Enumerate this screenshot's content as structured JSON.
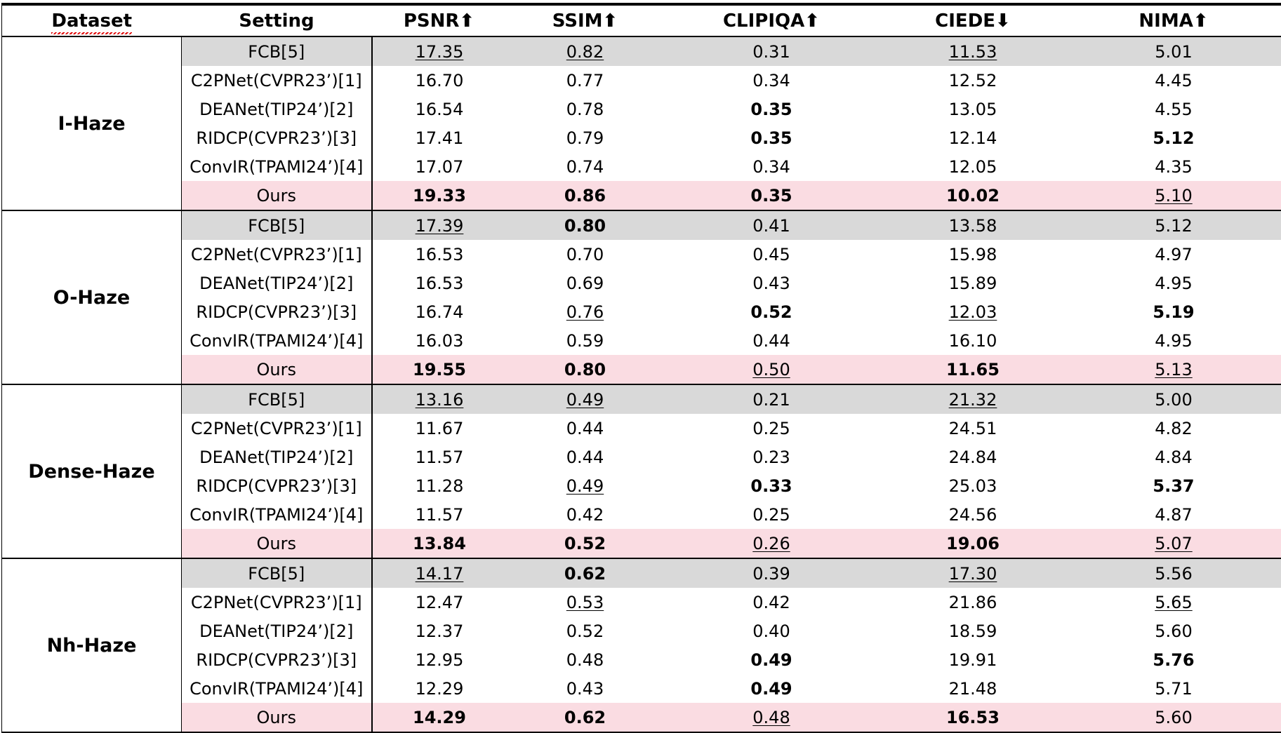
{
  "table": {
    "columns": [
      "Dataset",
      "Setting",
      "PSNR⬆",
      "SSIM⬆",
      "CLIPIQA⬆",
      "CIEDE⬇",
      "NIMA⬆"
    ],
    "groups": [
      {
        "dataset": "I-Haze",
        "rows": [
          {
            "setting": "FCB[5]",
            "kind": "baseline",
            "cells": [
              {
                "v": "17.35",
                "s": "u"
              },
              {
                "v": "0.82",
                "s": "u"
              },
              {
                "v": "0.31",
                "s": ""
              },
              {
                "v": "11.53",
                "s": "u"
              },
              {
                "v": "5.01",
                "s": ""
              }
            ]
          },
          {
            "setting": "C2PNet(CVPR23’)[1]",
            "kind": "",
            "cells": [
              {
                "v": "16.70",
                "s": ""
              },
              {
                "v": "0.77",
                "s": ""
              },
              {
                "v": "0.34",
                "s": ""
              },
              {
                "v": "12.52",
                "s": ""
              },
              {
                "v": "4.45",
                "s": ""
              }
            ]
          },
          {
            "setting": "DEANet(TIP24’)[2]",
            "kind": "",
            "cells": [
              {
                "v": "16.54",
                "s": ""
              },
              {
                "v": "0.78",
                "s": ""
              },
              {
                "v": "0.35",
                "s": "b"
              },
              {
                "v": "13.05",
                "s": ""
              },
              {
                "v": "4.55",
                "s": ""
              }
            ]
          },
          {
            "setting": "RIDCP(CVPR23’)[3]",
            "kind": "",
            "cells": [
              {
                "v": "17.41",
                "s": ""
              },
              {
                "v": "0.79",
                "s": ""
              },
              {
                "v": "0.35",
                "s": "b"
              },
              {
                "v": "12.14",
                "s": ""
              },
              {
                "v": "5.12",
                "s": "b"
              }
            ]
          },
          {
            "setting": "ConvIR(TPAMI24’)[4]",
            "kind": "",
            "cells": [
              {
                "v": "17.07",
                "s": ""
              },
              {
                "v": "0.74",
                "s": ""
              },
              {
                "v": "0.34",
                "s": ""
              },
              {
                "v": "12.05",
                "s": ""
              },
              {
                "v": "4.35",
                "s": ""
              }
            ]
          },
          {
            "setting": "Ours",
            "kind": "ours",
            "cells": [
              {
                "v": "19.33",
                "s": "b"
              },
              {
                "v": "0.86",
                "s": "b"
              },
              {
                "v": "0.35",
                "s": "b"
              },
              {
                "v": "10.02",
                "s": "b"
              },
              {
                "v": "5.10",
                "s": "u"
              }
            ]
          }
        ]
      },
      {
        "dataset": "O-Haze",
        "rows": [
          {
            "setting": "FCB[5]",
            "kind": "baseline",
            "cells": [
              {
                "v": "17.39",
                "s": "u"
              },
              {
                "v": "0.80",
                "s": "b"
              },
              {
                "v": "0.41",
                "s": ""
              },
              {
                "v": "13.58",
                "s": ""
              },
              {
                "v": "5.12",
                "s": ""
              }
            ]
          },
          {
            "setting": "C2PNet(CVPR23’)[1]",
            "kind": "",
            "cells": [
              {
                "v": "16.53",
                "s": ""
              },
              {
                "v": "0.70",
                "s": ""
              },
              {
                "v": "0.45",
                "s": ""
              },
              {
                "v": "15.98",
                "s": ""
              },
              {
                "v": "4.97",
                "s": ""
              }
            ]
          },
          {
            "setting": "DEANet(TIP24’)[2]",
            "kind": "",
            "cells": [
              {
                "v": "16.53",
                "s": ""
              },
              {
                "v": "0.69",
                "s": ""
              },
              {
                "v": "0.43",
                "s": ""
              },
              {
                "v": "15.89",
                "s": ""
              },
              {
                "v": "4.95",
                "s": ""
              }
            ]
          },
          {
            "setting": "RIDCP(CVPR23’)[3]",
            "kind": "",
            "cells": [
              {
                "v": "16.74",
                "s": ""
              },
              {
                "v": "0.76",
                "s": "u"
              },
              {
                "v": "0.52",
                "s": "b"
              },
              {
                "v": "12.03",
                "s": "u"
              },
              {
                "v": "5.19",
                "s": "b"
              }
            ]
          },
          {
            "setting": "ConvIR(TPAMI24’)[4]",
            "kind": "",
            "cells": [
              {
                "v": "16.03",
                "s": ""
              },
              {
                "v": "0.59",
                "s": ""
              },
              {
                "v": "0.44",
                "s": ""
              },
              {
                "v": "16.10",
                "s": ""
              },
              {
                "v": "4.95",
                "s": ""
              }
            ]
          },
          {
            "setting": "Ours",
            "kind": "ours",
            "cells": [
              {
                "v": "19.55",
                "s": "b"
              },
              {
                "v": "0.80",
                "s": "b"
              },
              {
                "v": "0.50",
                "s": "u"
              },
              {
                "v": "11.65",
                "s": "b"
              },
              {
                "v": "5.13",
                "s": "u"
              }
            ]
          }
        ]
      },
      {
        "dataset": "Dense-Haze",
        "rows": [
          {
            "setting": "FCB[5]",
            "kind": "baseline",
            "cells": [
              {
                "v": "13.16",
                "s": "u"
              },
              {
                "v": "0.49",
                "s": "u"
              },
              {
                "v": "0.21",
                "s": ""
              },
              {
                "v": "21.32",
                "s": "u"
              },
              {
                "v": "5.00",
                "s": ""
              }
            ]
          },
          {
            "setting": "C2PNet(CVPR23’)[1]",
            "kind": "",
            "cells": [
              {
                "v": "11.67",
                "s": ""
              },
              {
                "v": "0.44",
                "s": ""
              },
              {
                "v": "0.25",
                "s": ""
              },
              {
                "v": "24.51",
                "s": ""
              },
              {
                "v": "4.82",
                "s": ""
              }
            ]
          },
          {
            "setting": "DEANet(TIP24’)[2]",
            "kind": "",
            "cells": [
              {
                "v": "11.57",
                "s": ""
              },
              {
                "v": "0.44",
                "s": ""
              },
              {
                "v": "0.23",
                "s": ""
              },
              {
                "v": "24.84",
                "s": ""
              },
              {
                "v": "4.84",
                "s": ""
              }
            ]
          },
          {
            "setting": "RIDCP(CVPR23’)[3]",
            "kind": "",
            "cells": [
              {
                "v": "11.28",
                "s": ""
              },
              {
                "v": "0.49",
                "s": "u"
              },
              {
                "v": "0.33",
                "s": "b"
              },
              {
                "v": "25.03",
                "s": ""
              },
              {
                "v": "5.37",
                "s": "b"
              }
            ]
          },
          {
            "setting": "ConvIR(TPAMI24’)[4]",
            "kind": "",
            "cells": [
              {
                "v": "11.57",
                "s": ""
              },
              {
                "v": "0.42",
                "s": ""
              },
              {
                "v": "0.25",
                "s": ""
              },
              {
                "v": "24.56",
                "s": ""
              },
              {
                "v": "4.87",
                "s": ""
              }
            ]
          },
          {
            "setting": "Ours",
            "kind": "ours",
            "cells": [
              {
                "v": "13.84",
                "s": "b"
              },
              {
                "v": "0.52",
                "s": "b"
              },
              {
                "v": "0.26",
                "s": "u"
              },
              {
                "v": "19.06",
                "s": "b"
              },
              {
                "v": "5.07",
                "s": "u"
              }
            ]
          }
        ]
      },
      {
        "dataset": "Nh-Haze",
        "rows": [
          {
            "setting": "FCB[5]",
            "kind": "baseline",
            "cells": [
              {
                "v": "14.17",
                "s": "u"
              },
              {
                "v": "0.62",
                "s": "b"
              },
              {
                "v": "0.39",
                "s": ""
              },
              {
                "v": "17.30",
                "s": "u"
              },
              {
                "v": "5.56",
                "s": ""
              }
            ]
          },
          {
            "setting": "C2PNet(CVPR23’)[1]",
            "kind": "",
            "cells": [
              {
                "v": "12.47",
                "s": ""
              },
              {
                "v": "0.53",
                "s": "u"
              },
              {
                "v": "0.42",
                "s": ""
              },
              {
                "v": "21.86",
                "s": ""
              },
              {
                "v": "5.65",
                "s": "u"
              }
            ]
          },
          {
            "setting": "DEANet(TIP24’)[2]",
            "kind": "",
            "cells": [
              {
                "v": "12.37",
                "s": ""
              },
              {
                "v": "0.52",
                "s": ""
              },
              {
                "v": "0.40",
                "s": ""
              },
              {
                "v": "18.59",
                "s": ""
              },
              {
                "v": "5.60",
                "s": ""
              }
            ]
          },
          {
            "setting": "RIDCP(CVPR23’)[3]",
            "kind": "",
            "cells": [
              {
                "v": "12.95",
                "s": ""
              },
              {
                "v": "0.48",
                "s": ""
              },
              {
                "v": "0.49",
                "s": "b"
              },
              {
                "v": "19.91",
                "s": ""
              },
              {
                "v": "5.76",
                "s": "b"
              }
            ]
          },
          {
            "setting": "ConvIR(TPAMI24’)[4]",
            "kind": "",
            "cells": [
              {
                "v": "12.29",
                "s": ""
              },
              {
                "v": "0.43",
                "s": ""
              },
              {
                "v": "0.49",
                "s": "b"
              },
              {
                "v": "21.48",
                "s": ""
              },
              {
                "v": "5.71",
                "s": ""
              }
            ]
          },
          {
            "setting": "Ours",
            "kind": "ours",
            "cells": [
              {
                "v": "14.29",
                "s": "b"
              },
              {
                "v": "0.62",
                "s": "b"
              },
              {
                "v": "0.48",
                "s": "u"
              },
              {
                "v": "16.53",
                "s": "b"
              },
              {
                "v": "5.60",
                "s": ""
              }
            ]
          }
        ]
      }
    ]
  },
  "colors": {
    "baseline_row": "#d9d9d9",
    "ours_row": "#fadce2",
    "rule": "#000000"
  }
}
